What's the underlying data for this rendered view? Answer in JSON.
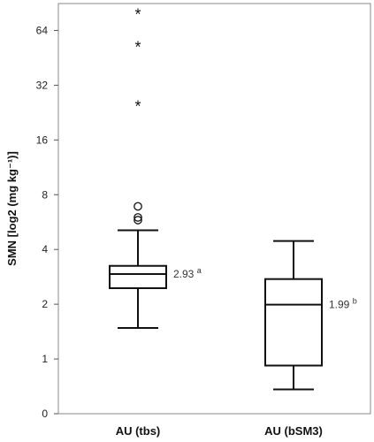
{
  "chart_data": {
    "type": "boxplot",
    "yscale": "log2",
    "ylabel": "SMN [log2 (mg kg⁻¹)]",
    "y_ticks": [
      {
        "value": 0.5,
        "label": "0"
      },
      {
        "value": 1,
        "label": "1"
      },
      {
        "value": 2,
        "label": "2"
      },
      {
        "value": 4,
        "label": "4"
      },
      {
        "value": 8,
        "label": "8"
      },
      {
        "value": 16,
        "label": "16"
      },
      {
        "value": 32,
        "label": "32"
      },
      {
        "value": 64,
        "label": "64"
      }
    ],
    "ylim": [
      0.5,
      90
    ],
    "grid": false,
    "categories": [
      "AU (tbs)",
      "AU (bSM3)"
    ],
    "boxes": [
      {
        "name": "AU (tbs)",
        "whisker_low": 1.48,
        "q1": 2.45,
        "median": 2.93,
        "q3": 3.25,
        "whisker_high": 5.1,
        "outliers_circle": [
          5.8,
          6.0,
          6.9
        ],
        "outliers_star": [
          25,
          53,
          80
        ],
        "annotation": {
          "value": "2.93",
          "letter": "a"
        }
      },
      {
        "name": "AU (bSM3)",
        "whisker_low": 0.68,
        "q1": 0.92,
        "median": 1.99,
        "q3": 2.75,
        "whisker_high": 4.45,
        "outliers_circle": [],
        "outliers_star": [],
        "annotation": {
          "value": "1.99",
          "letter": "b"
        }
      }
    ]
  }
}
